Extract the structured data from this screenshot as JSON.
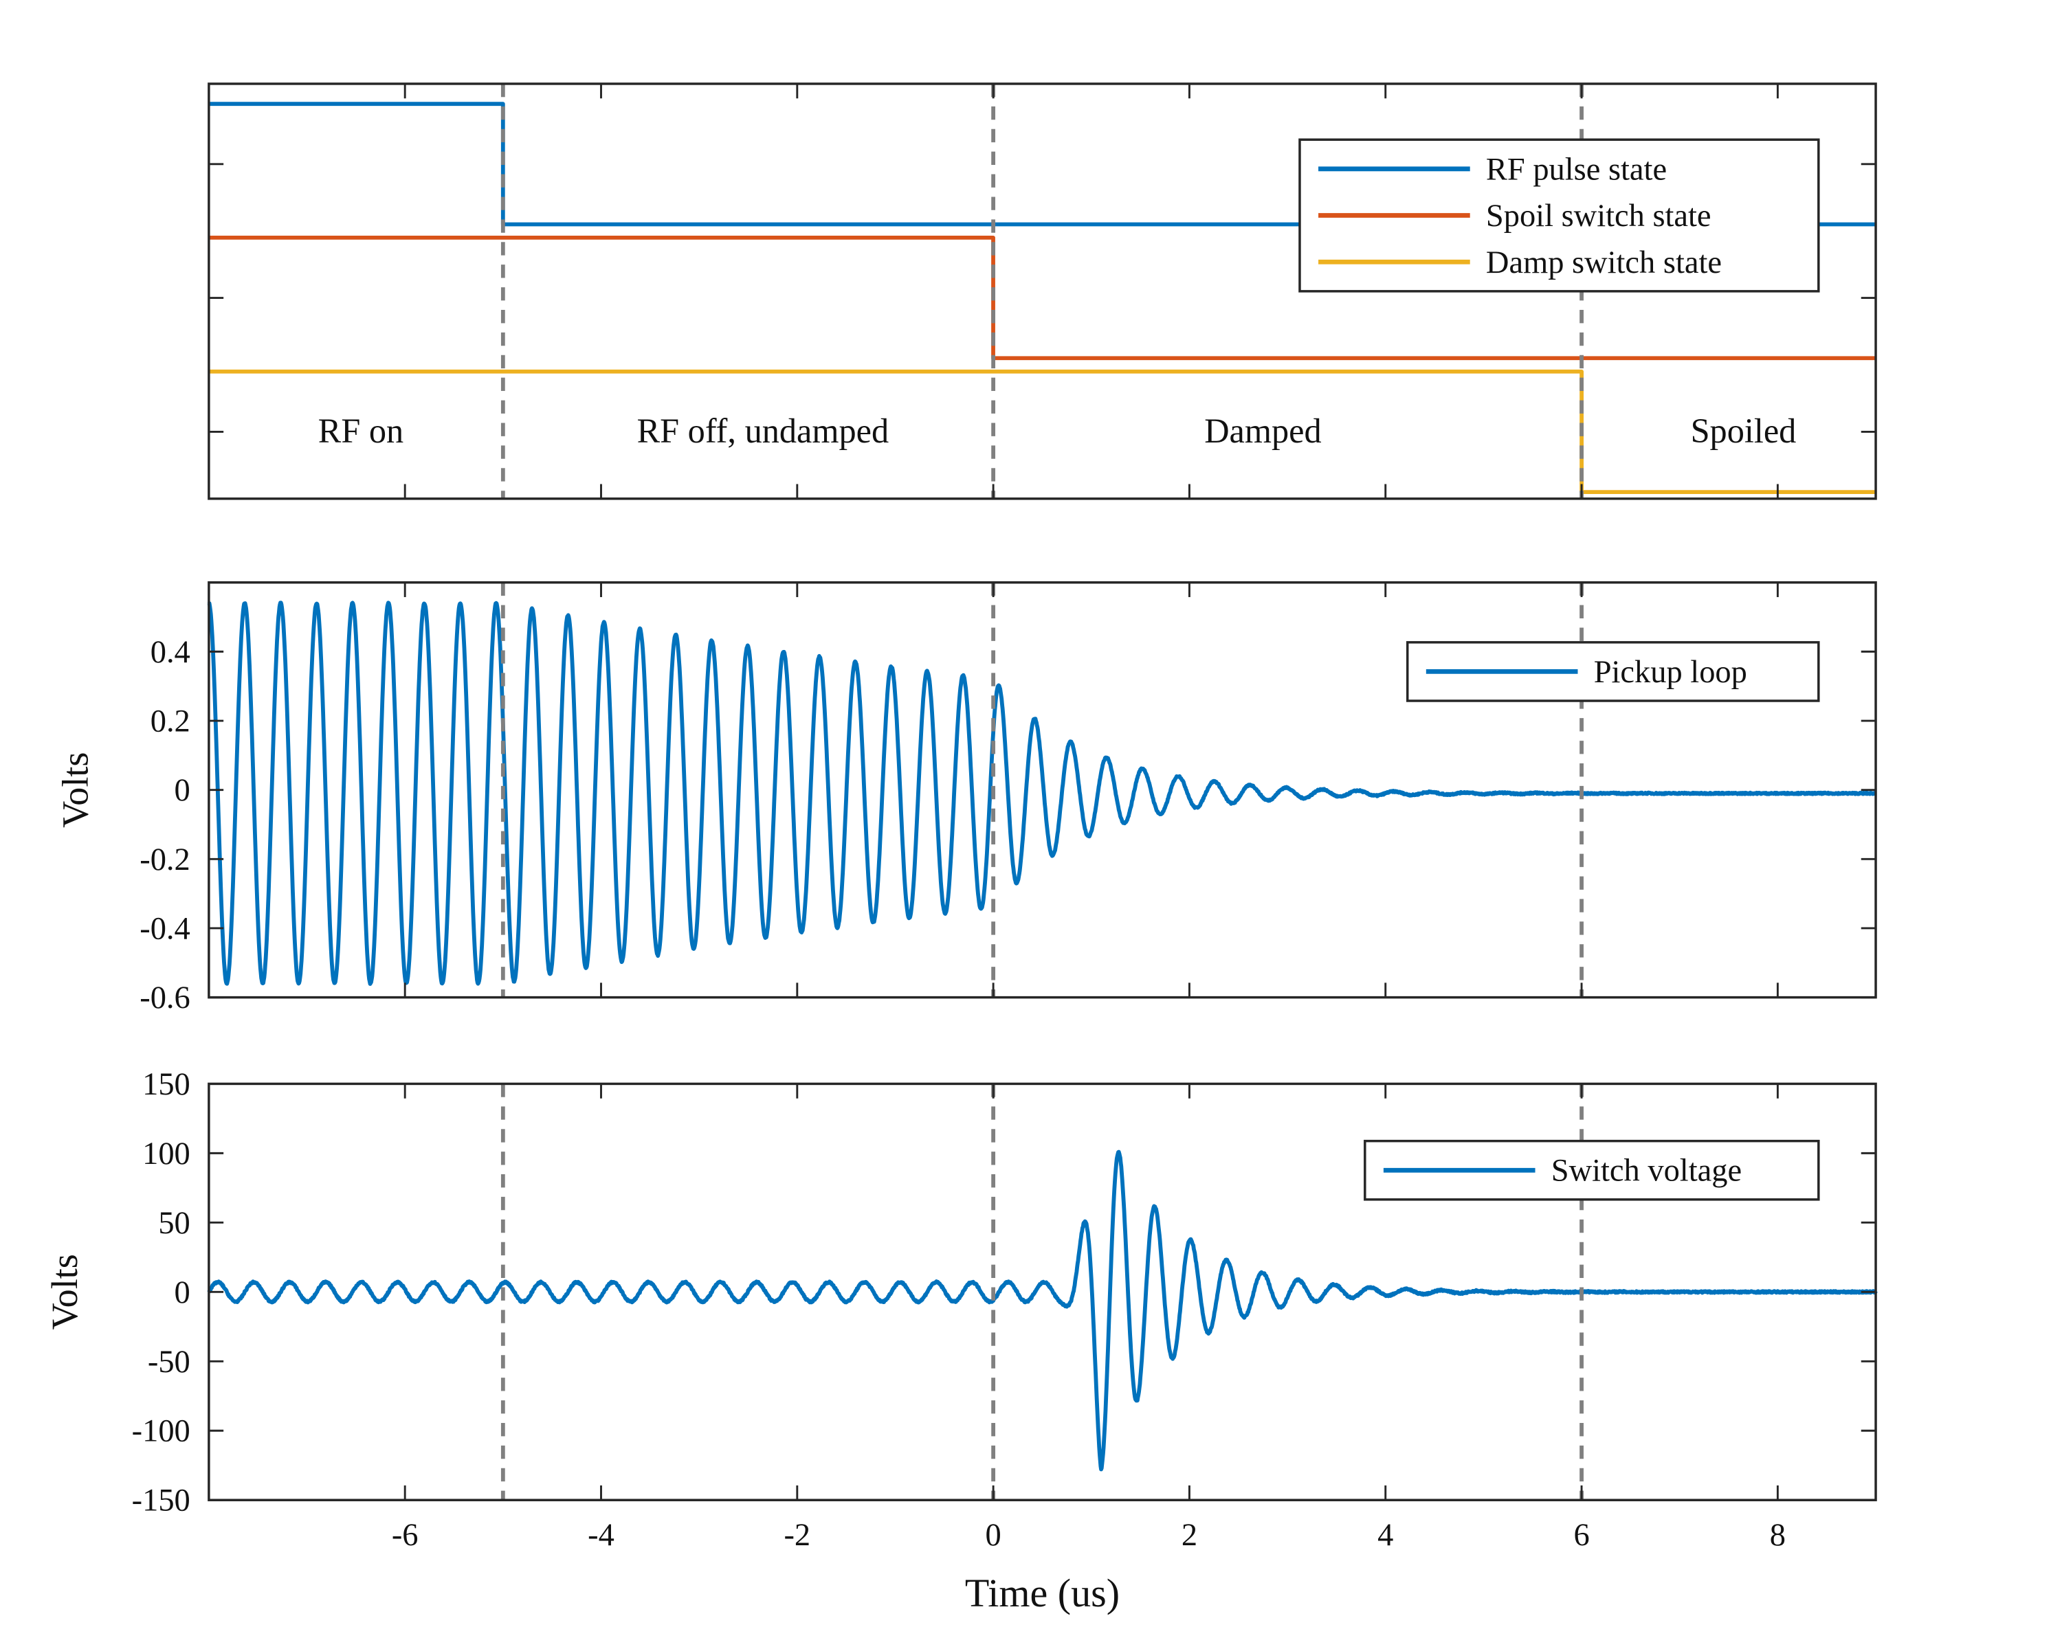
{
  "chart_data": [
    {
      "type": "line",
      "panel": "states",
      "title": "",
      "xlabel": "",
      "ylabel": "",
      "xlim": [
        -8,
        9
      ],
      "ylim": [
        0.5,
        3.6
      ],
      "xticks": [
        -6,
        -4,
        -2,
        0,
        2,
        4,
        6,
        8
      ],
      "yticks": [
        1,
        2,
        3
      ],
      "show_ytick_labels": false,
      "legend": "top-right",
      "series": [
        {
          "name": "RF pulse state",
          "color": "#0072BD",
          "x": [
            -8,
            -5,
            -5,
            9
          ],
          "y": [
            3.45,
            3.45,
            2.55,
            2.55
          ]
        },
        {
          "name": "Spoil switch state",
          "color": "#D95319",
          "x": [
            -8,
            0,
            0,
            9
          ],
          "y": [
            2.45,
            2.45,
            1.55,
            1.55
          ]
        },
        {
          "name": "Damp switch state",
          "color": "#EDB120",
          "x": [
            -8,
            6,
            6,
            9
          ],
          "y": [
            1.45,
            1.45,
            0.55,
            0.55
          ]
        }
      ],
      "annotations": [
        {
          "text": "RF on",
          "x": -6.45,
          "y": 1.0
        },
        {
          "text": "RF off, undamped",
          "x": -2.35,
          "y": 1.0
        },
        {
          "text": "Damped",
          "x": 2.75,
          "y": 1.0
        },
        {
          "text": "Spoiled",
          "x": 7.65,
          "y": 1.0
        }
      ],
      "vlines": [
        -5,
        0,
        6
      ]
    },
    {
      "type": "line",
      "panel": "pickup",
      "xlabel": "",
      "ylabel": "Volts",
      "xlim": [
        -8,
        9
      ],
      "ylim": [
        -0.6,
        0.6
      ],
      "xticks": [
        -6,
        -4,
        -2,
        0,
        2,
        4,
        6,
        8
      ],
      "yticks": [
        -0.6,
        -0.4,
        -0.2,
        0,
        0.2,
        0.4
      ],
      "ytick_labels": [
        "-0.6",
        "-0.4",
        "-0.2",
        "0",
        "0.2",
        "0.4"
      ],
      "legend": "top-right",
      "series": [
        {
          "name": "Pickup loop",
          "color": "#0072BD",
          "model": {
            "freq_MHz": 2.73,
            "amp_rf_on": 0.55,
            "amp_at_0": 0.33,
            "damped_tau_us": 1.0,
            "offset": -0.01,
            "noise": 0.004
          }
        }
      ],
      "vlines": [
        -5,
        0,
        6
      ]
    },
    {
      "type": "line",
      "panel": "switch",
      "xlabel": "Time (us)",
      "ylabel": "Volts",
      "xlim": [
        -8,
        9
      ],
      "ylim": [
        -150,
        150
      ],
      "xticks": [
        -6,
        -4,
        -2,
        0,
        2,
        4,
        6,
        8
      ],
      "xtick_labels": [
        "-6",
        "-4",
        "-2",
        "0",
        "2",
        "4",
        "6",
        "8"
      ],
      "yticks": [
        -150,
        -100,
        -50,
        0,
        50,
        100,
        150
      ],
      "ytick_labels": [
        "-150",
        "-100",
        "-50",
        "0",
        "50",
        "100",
        "150"
      ],
      "legend": "top-right",
      "series": [
        {
          "name": "Switch voltage",
          "color": "#0072BD",
          "model": {
            "freq_MHz": 2.73,
            "baseline_amp": 7,
            "burst_start_us": 0.65,
            "burst_peak_us": 1.1,
            "burst_peak_amp": 125,
            "burst_tau_us": 0.75,
            "noise": 1.2
          }
        }
      ],
      "vlines": [
        -5,
        0,
        6
      ]
    }
  ]
}
